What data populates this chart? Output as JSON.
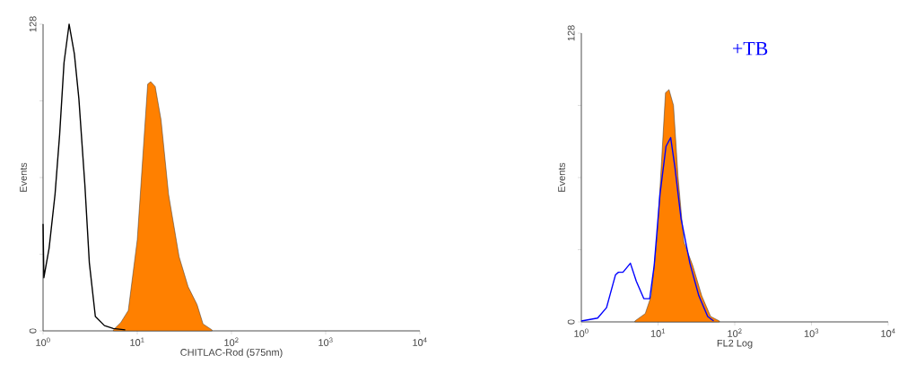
{
  "chart_data": [
    {
      "type": "line",
      "xlabel": "CHITLAC-Rod (575nm)",
      "ylabel": "Events",
      "log": "x",
      "xlim": [
        1,
        10000
      ],
      "ylim": [
        0,
        128
      ],
      "xticks": [
        {
          "value": 1,
          "label": "10$^{0}$"
        },
        {
          "value": 10,
          "label": "10$^{1}$"
        },
        {
          "value": 100,
          "label": "10$^{2}$"
        },
        {
          "value": 1000,
          "label": "10$^{3}$"
        },
        {
          "value": 10000,
          "label": "10$^{4}$"
        }
      ],
      "yticks": [
        0,
        {
          "value": 32,
          "label": null
        },
        {
          "value": 64,
          "label": null
        },
        {
          "value": 96,
          "label": null
        },
        128
      ],
      "series": [
        {
          "color": "#000000",
          "x": [
            1,
            1.02,
            1.16,
            1.34,
            1.5,
            1.67,
            1.89,
            2.15,
            2.4,
            2.78,
            3.1,
            3.59,
            4.48,
            5.57,
            7.46
          ],
          "values": [
            44.6,
            22.2,
            34.6,
            57,
            82,
            112,
            128,
            115.6,
            96.9,
            60.8,
            28.4,
            6,
            2.2,
            1,
            0.4
          ]
        },
        {
          "type": "area",
          "color": "#ff8000",
          "x": [
            5.57,
            6.69,
            8.03,
            10,
            11.6,
            12.9,
            13.9,
            15.5,
            17.9,
            21.5,
            27.8,
            34.7,
            43.1,
            49.9,
            62.2
          ],
          "values": [
            0.4,
            3.5,
            8.5,
            38,
            76,
            103,
            104,
            102,
            88,
            57,
            31,
            18.4,
            11,
            2.9,
            0.4
          ]
        }
      ]
    },
    {
      "type": "line",
      "xlabel": "FL2 Log",
      "ylabel": "Events",
      "log": "x",
      "annotations": [
        "+TB"
      ],
      "xlim": [
        1,
        10000
      ],
      "ylim": [
        0,
        128
      ],
      "xticks": [
        {
          "value": 1,
          "label": "10$^{0}$"
        },
        {
          "value": 10,
          "label": "10$^{1}$"
        },
        {
          "value": 100,
          "label": "10$^{2}$"
        },
        {
          "value": 1000,
          "label": "10$^{3}$"
        },
        {
          "value": 10000,
          "label": "10$^{4}$"
        }
      ],
      "yticks": [
        0,
        {
          "value": 32,
          "label": null
        },
        {
          "value": 64,
          "label": null
        },
        {
          "value": 96,
          "label": null
        },
        128
      ],
      "series": [
        {
          "type": "area",
          "color": "#ff8000",
          "x": [
            4.99,
            6.81,
            8.15,
            9.73,
            11.1,
            12.5,
            13.9,
            15.9,
            18.2,
            21.7,
            28.4,
            37.1,
            48.5,
            63.1
          ],
          "values": [
            0.4,
            3.7,
            11.6,
            38,
            71,
            101.6,
            103,
            96,
            64.6,
            35.4,
            24.9,
            11.6,
            2.4,
            0.4
          ]
        },
        {
          "color": "#0000ff",
          "x": [
            1,
            1.63,
            2.13,
            2.79,
            3.05,
            3.49,
            4.36,
            5.21,
            6.52,
            7.79,
            8.91,
            10.6,
            12.7,
            14.6,
            16.6,
            19.9,
            26,
            34,
            44.4,
            53.1
          ],
          "values": [
            0.4,
            1.7,
            6.3,
            20.9,
            22,
            22,
            26,
            18,
            10.3,
            10.3,
            25,
            56.6,
            77.8,
            81.7,
            68.5,
            46,
            26,
            11.6,
            2.4,
            0.4
          ]
        }
      ]
    }
  ]
}
